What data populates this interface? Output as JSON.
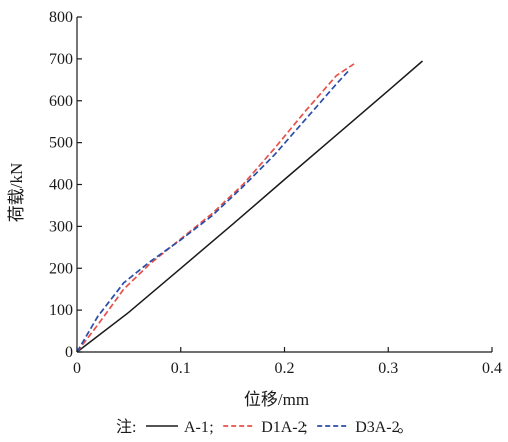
{
  "chart_data": {
    "type": "line",
    "xlabel": "位移/mm",
    "ylabel": "荷载/kN",
    "xlim": [
      0,
      0.4
    ],
    "ylim": [
      0,
      800
    ],
    "x_ticks": [
      "0",
      "0.1",
      "0.2",
      "0.3",
      "0.4"
    ],
    "y_ticks": [
      "0",
      "100",
      "200",
      "300",
      "400",
      "500",
      "600",
      "700",
      "800"
    ],
    "grid": false,
    "legend_placement": "bottom",
    "note": {
      "prefix": "注:",
      "separator": ";",
      "end": "。"
    },
    "series": [
      {
        "name": "A-1",
        "color": "#1a1a1a",
        "dash": "solid",
        "x": [
          0,
          0.05,
          0.1,
          0.15,
          0.2,
          0.25,
          0.3,
          0.333
        ],
        "y": [
          0,
          95,
          200,
          305,
          412,
          518,
          624,
          695
        ]
      },
      {
        "name": "D1A-2",
        "color": "#e8504a",
        "dash": "dashed",
        "x": [
          0,
          0.02,
          0.045,
          0.07,
          0.1,
          0.13,
          0.16,
          0.19,
          0.22,
          0.25,
          0.267
        ],
        "y": [
          0,
          65,
          150,
          210,
          270,
          330,
          400,
          485,
          575,
          660,
          688
        ]
      },
      {
        "name": "D3A-2",
        "color": "#2a4ea8",
        "dash": "dashed",
        "x": [
          0,
          0.02,
          0.045,
          0.07,
          0.1,
          0.13,
          0.16,
          0.19,
          0.22,
          0.25,
          0.262
        ],
        "y": [
          0,
          85,
          165,
          215,
          268,
          325,
          395,
          470,
          555,
          640,
          672
        ]
      }
    ]
  }
}
